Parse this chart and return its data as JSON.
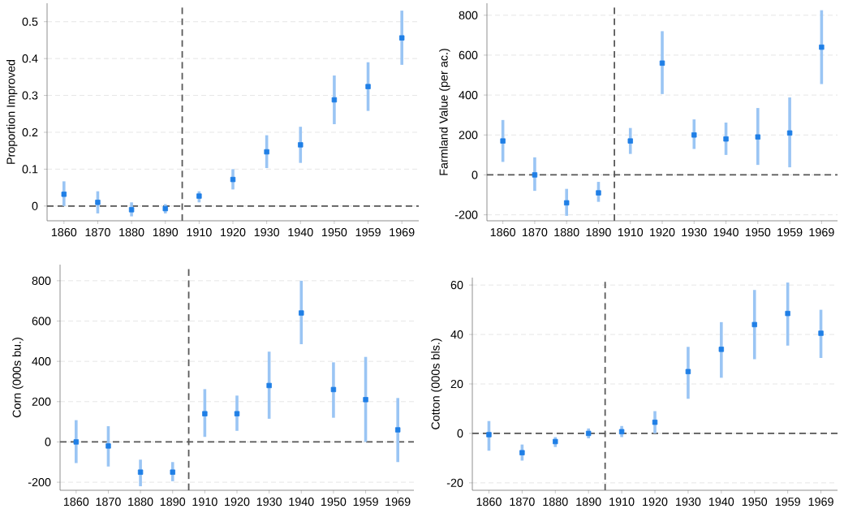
{
  "chart_data": [
    {
      "type": "scatter",
      "ylabel": "Proportion Improved",
      "categories": [
        "1860",
        "1870",
        "1880",
        "1890",
        "1910",
        "1920",
        "1930",
        "1940",
        "1950",
        "1959",
        "1969"
      ],
      "marker": "square",
      "grid": "y",
      "ylim": [
        -0.04,
        0.55
      ],
      "yticks": [
        0,
        0.1,
        0.2,
        0.3,
        0.4,
        0.5
      ],
      "series": [
        {
          "color": "#1f7fe6",
          "values": [
            0.032,
            0.01,
            -0.01,
            -0.007,
            0.027,
            0.072,
            0.147,
            0.166,
            0.288,
            0.324,
            0.456
          ],
          "errors": [
            [
              0.0,
              0.067
            ],
            [
              -0.02,
              0.04
            ],
            [
              -0.028,
              0.01
            ],
            [
              -0.02,
              0.005
            ],
            [
              0.01,
              0.04
            ],
            [
              0.045,
              0.1
            ],
            [
              0.103,
              0.192
            ],
            [
              0.117,
              0.215
            ],
            [
              0.222,
              0.354
            ],
            [
              0.258,
              0.39
            ],
            [
              0.383,
              0.53
            ]
          ]
        }
      ],
      "ref_lines": [
        {
          "axis": "y",
          "value": 0,
          "color": "#555555",
          "line_style": "dashed"
        }
      ]
    },
    {
      "type": "scatter",
      "ylabel": "Farmland Value (per ac.)",
      "categories": [
        "1860",
        "1870",
        "1880",
        "1890",
        "1910",
        "1920",
        "1930",
        "1940",
        "1950",
        "1959",
        "1969"
      ],
      "marker": "square",
      "grid": "y",
      "ylim": [
        -230,
        860
      ],
      "yticks": [
        -200,
        0,
        200,
        400,
        600,
        800
      ],
      "series": [
        {
          "color": "#1f7fe6",
          "values": [
            170,
            0,
            -140,
            -90,
            170,
            560,
            200,
            180,
            190,
            210,
            640
          ],
          "errors": [
            [
              65,
              275
            ],
            [
              -80,
              88
            ],
            [
              -205,
              -70
            ],
            [
              -135,
              -35
            ],
            [
              105,
              235
            ],
            [
              405,
              720
            ],
            [
              130,
              278
            ],
            [
              100,
              262
            ],
            [
              50,
              335
            ],
            [
              38,
              388
            ],
            [
              455,
              825
            ]
          ]
        }
      ],
      "ref_lines": [
        {
          "axis": "y",
          "value": 0,
          "color": "#555555",
          "line_style": "dashed"
        }
      ]
    },
    {
      "type": "scatter",
      "ylabel": "Corn (000s bu.)",
      "categories": [
        "1860",
        "1870",
        "1880",
        "1890",
        "1910",
        "1920",
        "1930",
        "1940",
        "1950",
        "1959",
        "1969"
      ],
      "marker": "square",
      "grid": "y",
      "ylim": [
        -240,
        880
      ],
      "yticks": [
        -200,
        0,
        200,
        400,
        600,
        800
      ],
      "series": [
        {
          "color": "#1f7fe6",
          "values": [
            0,
            -20,
            -150,
            -150,
            140,
            140,
            280,
            640,
            260,
            210,
            60
          ],
          "errors": [
            [
              -105,
              108
            ],
            [
              -122,
              78
            ],
            [
              -220,
              -88
            ],
            [
              -195,
              -100
            ],
            [
              25,
              262
            ],
            [
              55,
              230
            ],
            [
              115,
              448
            ],
            [
              485,
              800
            ],
            [
              120,
              395
            ],
            [
              0,
              422
            ],
            [
              -100,
              218
            ]
          ]
        }
      ],
      "ref_lines": [
        {
          "axis": "y",
          "value": 0,
          "color": "#555555",
          "line_style": "dashed"
        }
      ]
    },
    {
      "type": "scatter",
      "ylabel": "Cotton (000s bls.)",
      "categories": [
        "1860",
        "1870",
        "1880",
        "1890",
        "1910",
        "1920",
        "1930",
        "1940",
        "1950",
        "1959",
        "1969"
      ],
      "marker": "square",
      "grid": "y",
      "ylim": [
        -23,
        63
      ],
      "yticks": [
        -20,
        0,
        20,
        40,
        60
      ],
      "series": [
        {
          "color": "#1f7fe6",
          "values": [
            -0.5,
            -7.8,
            -3.3,
            0,
            0.7,
            4.5,
            25,
            34,
            44,
            48.5,
            40.5
          ],
          "errors": [
            [
              -7,
              5
            ],
            [
              -11,
              -4.5
            ],
            [
              -5.5,
              -1.5
            ],
            [
              -2,
              2
            ],
            [
              -1.5,
              3
            ],
            [
              0,
              9
            ],
            [
              14,
              35
            ],
            [
              22.5,
              45
            ],
            [
              30,
              58
            ],
            [
              35.5,
              61
            ],
            [
              30.5,
              50
            ]
          ]
        }
      ],
      "ref_lines": [
        {
          "axis": "y",
          "value": 0,
          "color": "#555555",
          "line_style": "dashed"
        }
      ]
    }
  ]
}
